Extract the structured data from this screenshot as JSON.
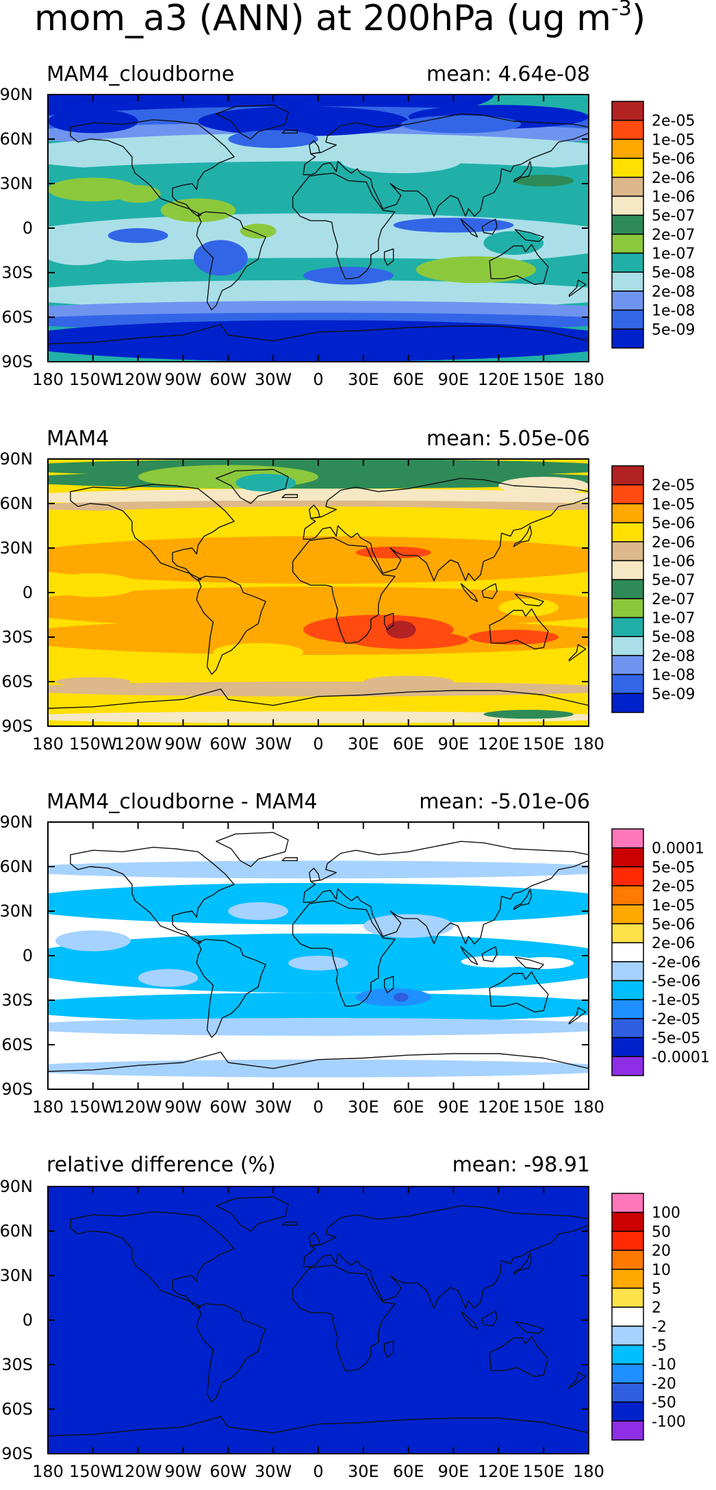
{
  "title": {
    "text": "mom_a3 (ANN) at 200hPa (ug m",
    "exponent": "-3",
    "close": ")"
  },
  "x_ticks": [
    "180",
    "150W",
    "120W",
    "90W",
    "60W",
    "30W",
    "0",
    "30E",
    "60E",
    "90E",
    "120E",
    "150E",
    "180"
  ],
  "y_ticks": [
    "90N",
    "60N",
    "30N",
    "0",
    "30S",
    "60S",
    "90S"
  ],
  "palettes": {
    "sequential": [
      "#0022cc",
      "#3366e6",
      "#6f94f0",
      "#aadfe8",
      "#20b0a8",
      "#8cc83c",
      "#2e8b57",
      "#f6e8c4",
      "#dcb88a",
      "#ffe000",
      "#ffa800",
      "#ff4a10",
      "#b22222"
    ],
    "diverging": [
      "#8e2ee6",
      "#0022cc",
      "#2f5fe0",
      "#1e90ff",
      "#00bfff",
      "#a6d2ff",
      "#ffffff",
      "#ffe24a",
      "#ffa800",
      "#ff7a00",
      "#ff2a00",
      "#cc0000",
      "#ff77bb"
    ]
  },
  "panels": [
    {
      "label": "MAM4_cloudborne",
      "mean_text": "mean: 4.64e-08",
      "colorbar_labels": [
        "2e-05",
        "1e-05",
        "5e-06",
        "2e-06",
        "1e-06",
        "5e-07",
        "2e-07",
        "1e-07",
        "5e-08",
        "2e-08",
        "1e-08",
        "5e-09"
      ],
      "palette": "sequential"
    },
    {
      "label": "MAM4",
      "mean_text": "mean: 5.05e-06",
      "colorbar_labels": [
        "2e-05",
        "1e-05",
        "5e-06",
        "2e-06",
        "1e-06",
        "5e-07",
        "2e-07",
        "1e-07",
        "5e-08",
        "2e-08",
        "1e-08",
        "5e-09"
      ],
      "palette": "sequential"
    },
    {
      "label": "MAM4_cloudborne - MAM4",
      "mean_text": "mean: -5.01e-06",
      "colorbar_labels": [
        "0.0001",
        "5e-05",
        "2e-05",
        "1e-05",
        "5e-06",
        "2e-06",
        "-2e-06",
        "-5e-06",
        "-1e-05",
        "-2e-05",
        "-5e-05",
        "-0.0001"
      ],
      "palette": "diverging"
    },
    {
      "label": "relative difference (%)",
      "mean_text": "mean: -98.91",
      "colorbar_labels": [
        "100",
        "50",
        "20",
        "10",
        "5",
        "2",
        "-2",
        "-5",
        "-10",
        "-20",
        "-50",
        "-100"
      ],
      "palette": "diverging"
    }
  ],
  "colors": {
    "coastline": "#111111",
    "frame": "#000000"
  }
}
